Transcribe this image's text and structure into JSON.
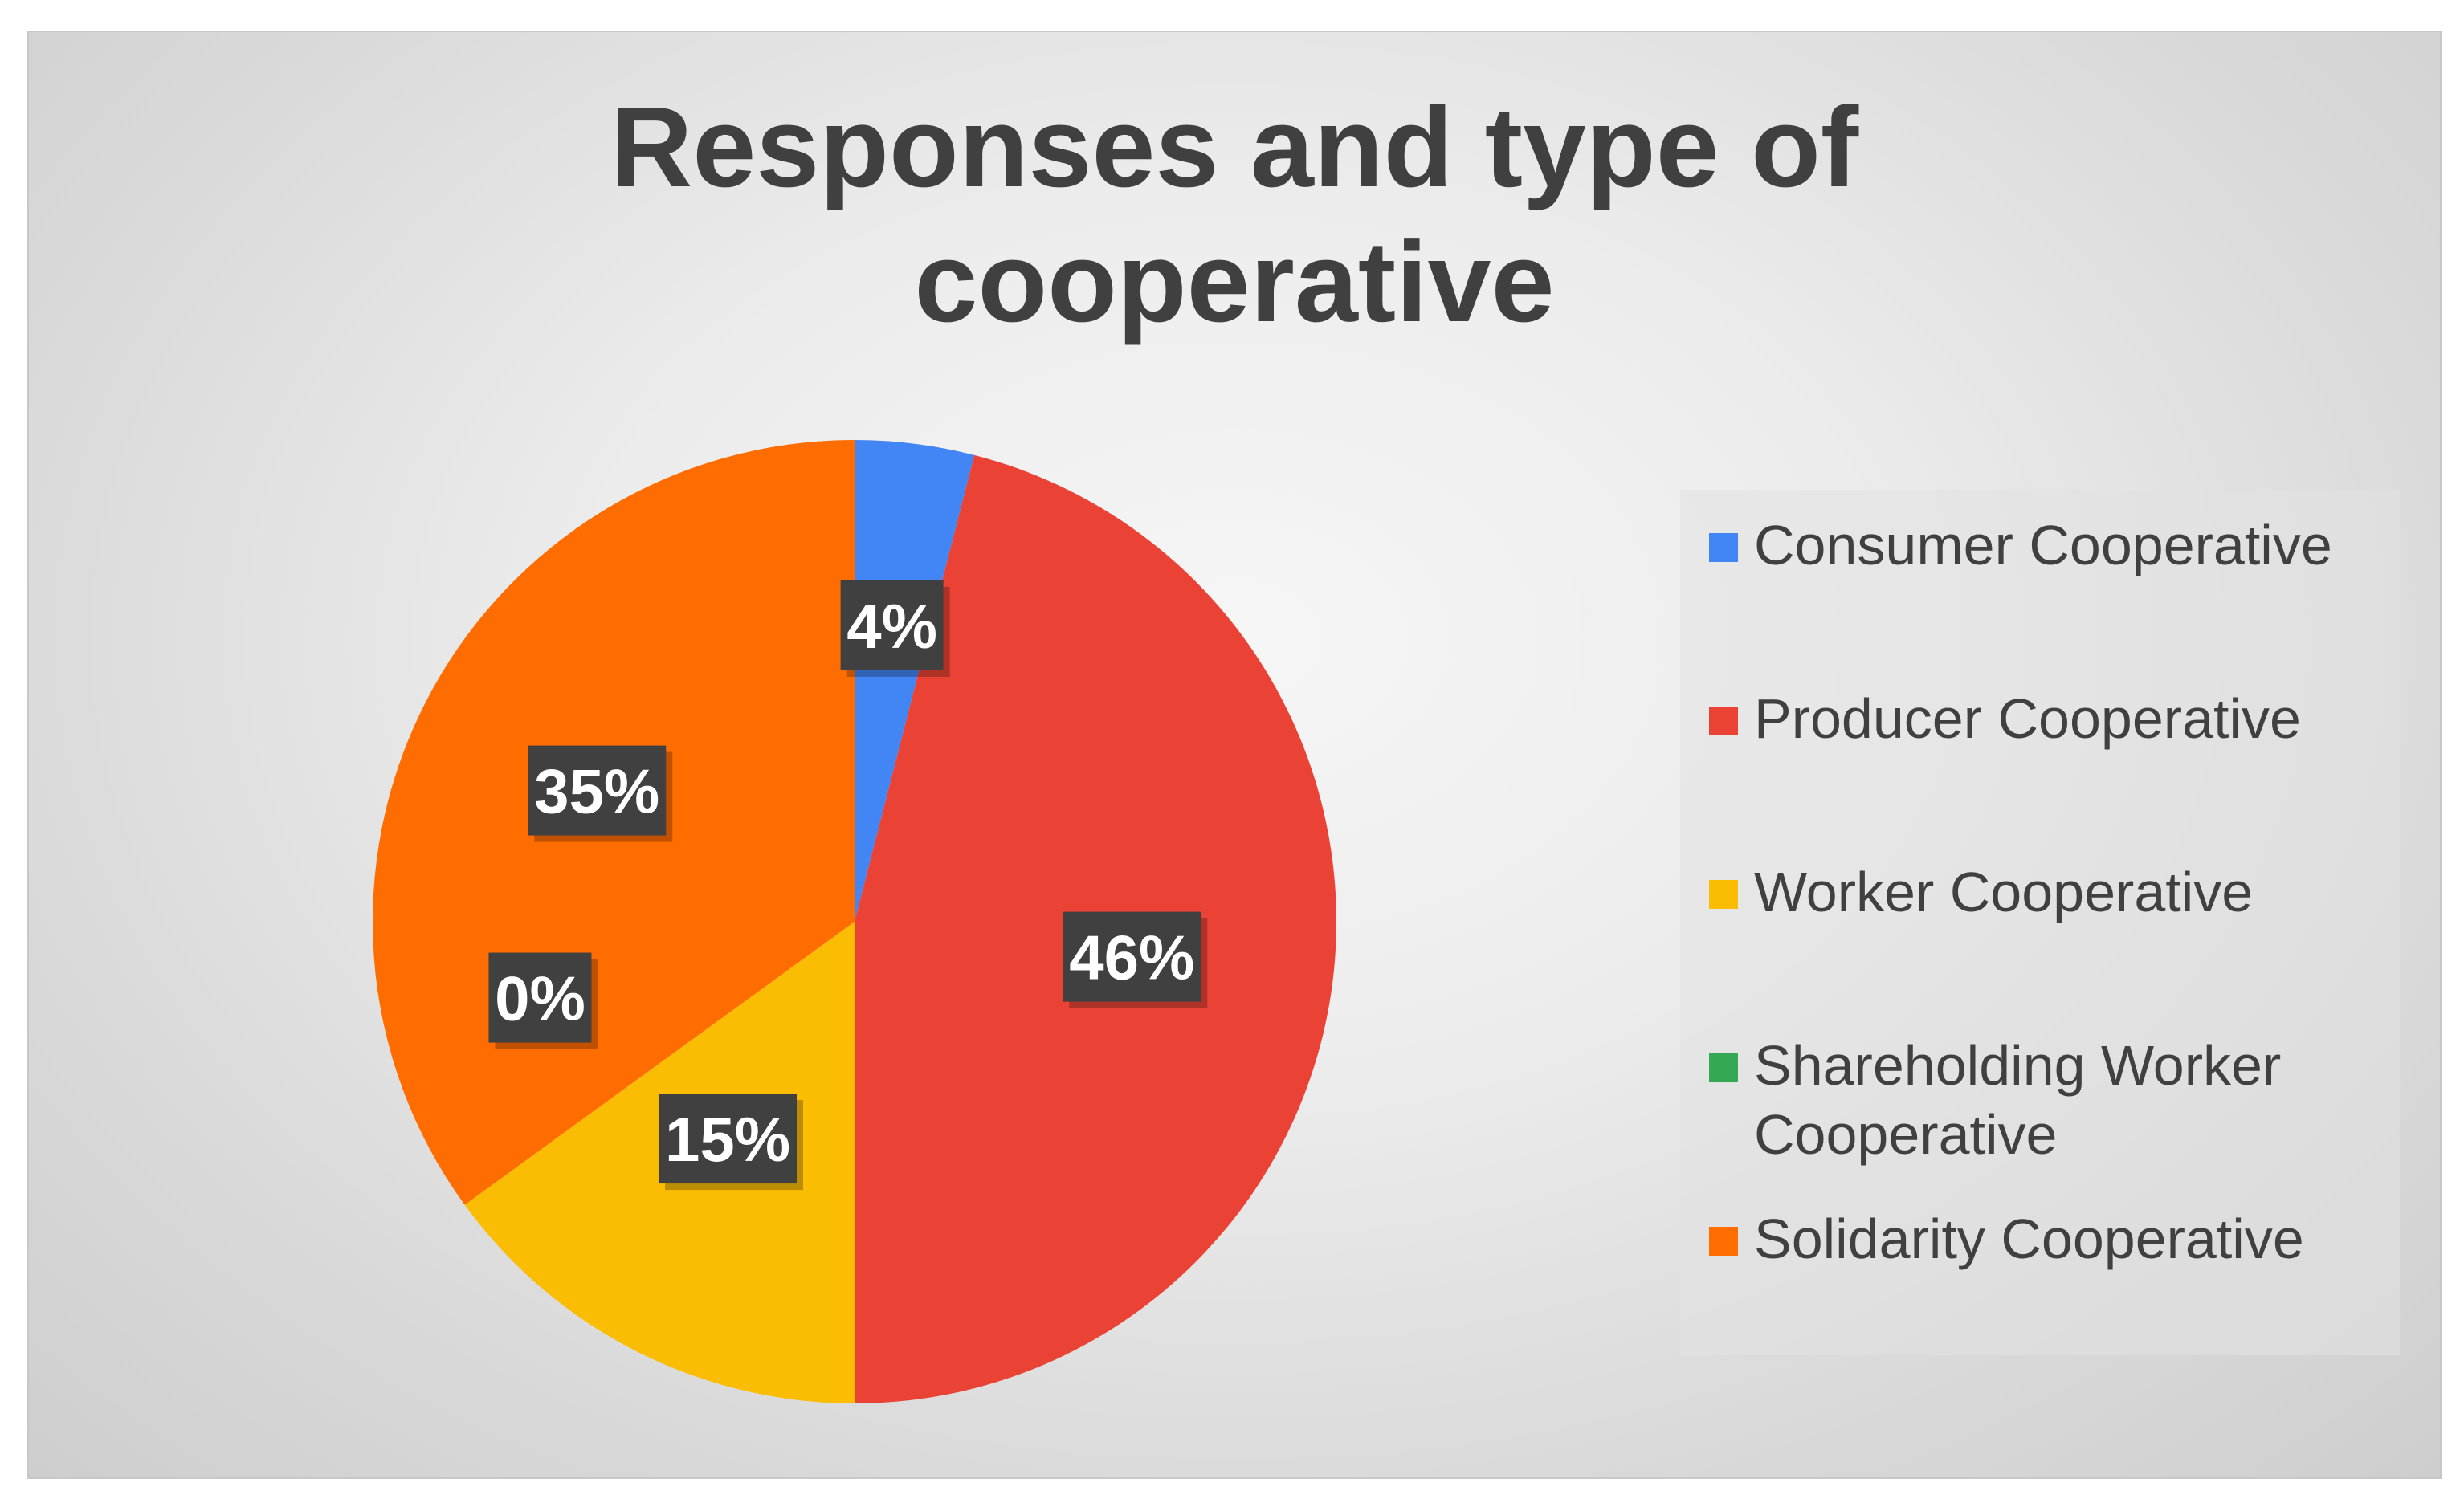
{
  "chart_data": {
    "type": "pie",
    "title": "Responses and type of cooperative",
    "title_lines": [
      "Responses and type of",
      "cooperative"
    ],
    "categories": [
      "Consumer Cooperative",
      "Producer Cooperative",
      "Worker Cooperative",
      "Shareholding Worker Cooperative",
      "Solidarity Cooperative"
    ],
    "values": [
      4,
      46,
      15,
      0,
      35
    ],
    "data_labels": [
      "4%",
      "46%",
      "15%",
      "0%",
      "35%"
    ],
    "colors": [
      "#4285F4",
      "#EA4335",
      "#FBBC04",
      "#34A853",
      "#FF6D01"
    ],
    "legend_position": "right",
    "legend": {
      "items": [
        {
          "lines": [
            "Consumer Cooperative"
          ]
        },
        {
          "lines": [
            "Producer Cooperative"
          ]
        },
        {
          "lines": [
            "Worker Cooperative"
          ]
        },
        {
          "lines": [
            "Shareholding Worker",
            "Cooperative"
          ]
        },
        {
          "lines": [
            "Solidarity Cooperative"
          ]
        }
      ]
    }
  }
}
